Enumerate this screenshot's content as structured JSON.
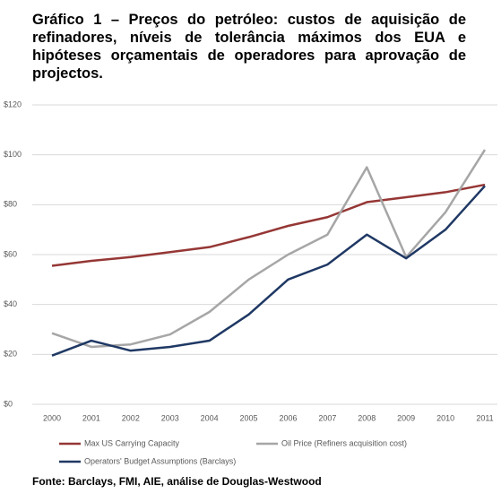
{
  "chart_data": {
    "type": "line",
    "title": "Gráfico 1 – Preços do petróleo: custos de aquisição de refinadores, níveis de tolerância máximos dos EUA e hipóteses orçamentais de operadores para aprovação de projectos.",
    "source": "Fonte: Barclays, FMI, AIE, análise de Douglas-Westwood",
    "categories": [
      "2000",
      "2001",
      "2002",
      "2003",
      "2004",
      "2005",
      "2006",
      "2007",
      "2008",
      "2009",
      "2010",
      "2011"
    ],
    "series": [
      {
        "name": "Max US Carrying Capacity",
        "color": "#953735",
        "values": [
          55.5,
          57.5,
          59,
          61,
          63,
          67,
          71.5,
          75,
          81,
          83,
          85,
          88
        ]
      },
      {
        "name": "Oil Price (Refiners acquisition cost)",
        "color": "#a6a6a6",
        "values": [
          28.5,
          23,
          24,
          28,
          37,
          50,
          60,
          68,
          95,
          59,
          77,
          102
        ]
      },
      {
        "name": "Operators' Budget Assumptions (Barclays)",
        "color": "#1f3864",
        "values": [
          19.5,
          25.5,
          21.5,
          23,
          25.5,
          36,
          50,
          56,
          68,
          58.5,
          70,
          87.5
        ]
      }
    ],
    "ylim": [
      0,
      120
    ],
    "yticks": [
      {
        "value": 0,
        "label": "$0"
      },
      {
        "value": 20,
        "label": "$20"
      },
      {
        "value": 40,
        "label": "$40"
      },
      {
        "value": 60,
        "label": "$60"
      },
      {
        "value": 80,
        "label": "$80"
      },
      {
        "value": 100,
        "label": "$100"
      },
      {
        "value": 120,
        "label": "$120"
      }
    ],
    "grid": true
  }
}
